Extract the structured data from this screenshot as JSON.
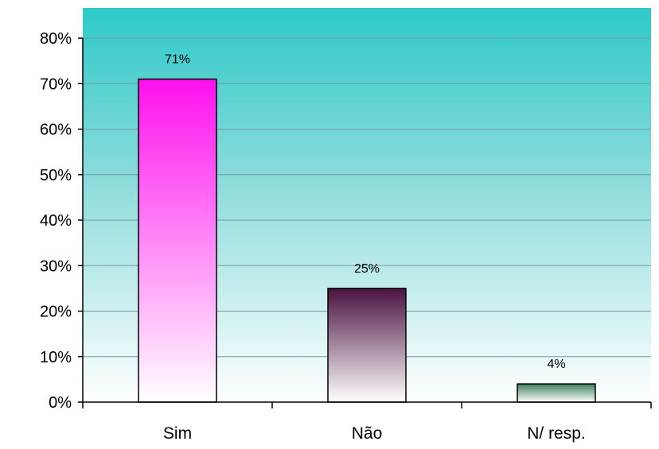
{
  "chart_data": {
    "type": "bar",
    "title": "",
    "xlabel": "",
    "ylabel": "",
    "categories": [
      "Sim",
      "Não",
      "N/ resp."
    ],
    "values": [
      71,
      25,
      4
    ],
    "value_labels": [
      "71%",
      "25%",
      "4%"
    ],
    "ylim": [
      0,
      80
    ],
    "yticks": [
      0,
      10,
      20,
      30,
      40,
      50,
      60,
      70,
      80
    ],
    "ytick_labels": [
      "0%",
      "10%",
      "20%",
      "30%",
      "40%",
      "50%",
      "60%",
      "70%",
      "80%"
    ],
    "grid": true,
    "legend": "none",
    "colors": {
      "plot_background_top": "#2ec9c9",
      "plot_background_bottom": "#ffffff",
      "bar_colors": [
        {
          "top": "#ff10ee",
          "bottom": "#ffffff"
        },
        {
          "top": "#4a1240",
          "bottom": "#ffffff"
        },
        {
          "top": "#3c7f5a",
          "bottom": "#ffffff"
        }
      ],
      "gridline": "#6f9da0",
      "axis": "#000000"
    }
  }
}
